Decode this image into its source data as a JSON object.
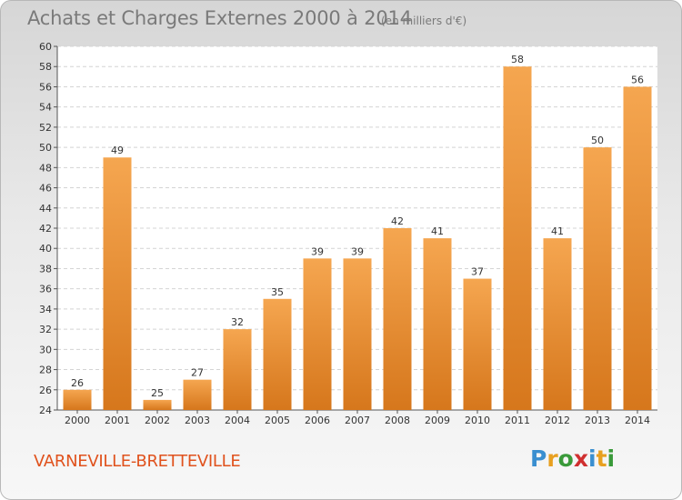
{
  "chart_data": {
    "type": "bar",
    "title": "Achats et Charges Externes 2000 à 2014",
    "subtitle": "(en milliers d'€)",
    "categories": [
      "2000",
      "2001",
      "2002",
      "2003",
      "2004",
      "2005",
      "2006",
      "2007",
      "2008",
      "2009",
      "2010",
      "2011",
      "2012",
      "2013",
      "2014"
    ],
    "values": [
      26,
      49,
      25,
      27,
      32,
      35,
      39,
      39,
      42,
      41,
      37,
      58,
      41,
      50,
      56
    ],
    "ylim": [
      24,
      60
    ],
    "yticks": [
      24,
      26,
      28,
      30,
      32,
      34,
      36,
      38,
      40,
      42,
      44,
      46,
      48,
      50,
      52,
      54,
      56,
      58,
      60
    ],
    "xlabel": "",
    "ylabel": "",
    "grid": true,
    "bar_color": "#f0a050",
    "bar_color_dark": "#d67b20"
  },
  "footer": {
    "commune": "VARNEVILLE-BRETTEVILLE",
    "logo_letters": [
      {
        "char": "P",
        "color": "#3a8fd0"
      },
      {
        "char": "r",
        "color": "#e8a020"
      },
      {
        "char": "o",
        "color": "#3a9a3a"
      },
      {
        "char": "x",
        "color": "#d03030"
      },
      {
        "char": "i",
        "color": "#3a8fd0"
      },
      {
        "char": "t",
        "color": "#e8a020"
      },
      {
        "char": "i",
        "color": "#3a9a3a"
      }
    ]
  }
}
